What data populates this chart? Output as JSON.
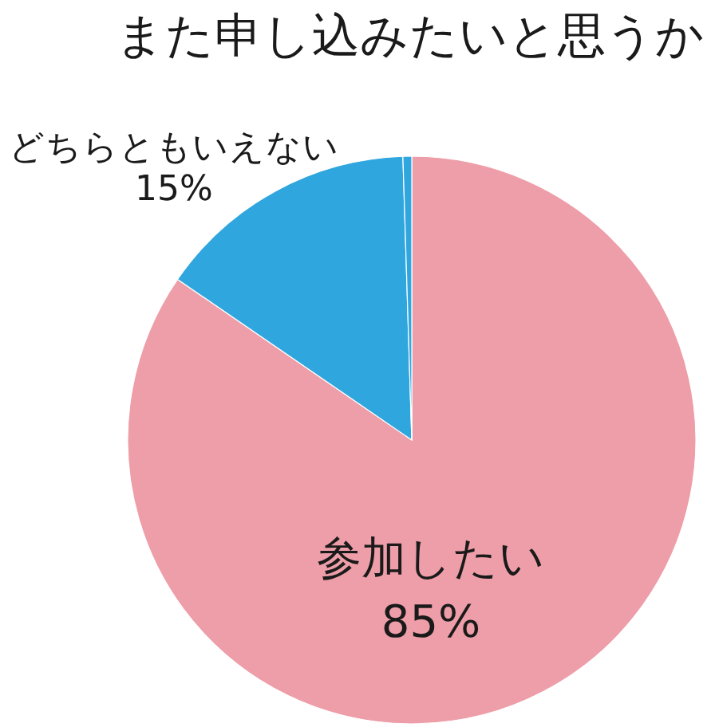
{
  "chart_data": {
    "type": "pie",
    "title": "また申し込みたいと思うか",
    "categories": [
      "参加したい",
      "どちらともいえない",
      null
    ],
    "values": [
      85,
      15,
      0.5
    ],
    "colors": [
      "#ee9ea8",
      "#30a6df",
      "#30a6df"
    ],
    "value_labels": [
      "85%",
      "15%",
      null
    ]
  }
}
